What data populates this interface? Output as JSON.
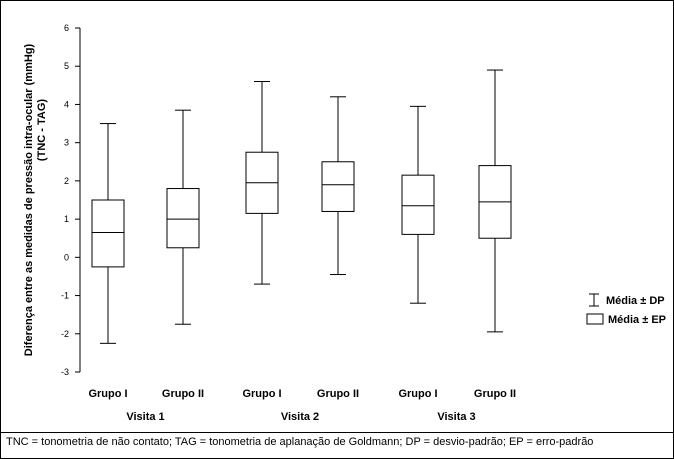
{
  "chart_data": {
    "type": "box",
    "ylabel": "Diferença entre as medidas de pressão intra-ocular (mmHg)",
    "ylabel_sub": "(TNC - TAG)",
    "ylim": [
      -3,
      6
    ],
    "yticks": [
      -3,
      -2,
      -1,
      0,
      1,
      2,
      3,
      4,
      5,
      6
    ],
    "grid": false,
    "legend_position": "right",
    "visits": [
      "Visita 1",
      "Visita 2",
      "Visita 3"
    ],
    "groups": [
      "Grupo I",
      "Grupo II",
      "Grupo I",
      "Grupo II",
      "Grupo I",
      "Grupo II"
    ],
    "series": [
      {
        "group": "Grupo I",
        "visit": "Visita 1",
        "mean": 0.65,
        "ep_low": -0.25,
        "ep_high": 1.5,
        "dp_low": -2.25,
        "dp_high": 3.5
      },
      {
        "group": "Grupo II",
        "visit": "Visita 1",
        "mean": 1.0,
        "ep_low": 0.25,
        "ep_high": 1.8,
        "dp_low": -1.75,
        "dp_high": 3.85
      },
      {
        "group": "Grupo I",
        "visit": "Visita 2",
        "mean": 1.95,
        "ep_low": 1.15,
        "ep_high": 2.75,
        "dp_low": -0.7,
        "dp_high": 4.6
      },
      {
        "group": "Grupo II",
        "visit": "Visita 2",
        "mean": 1.9,
        "ep_low": 1.2,
        "ep_high": 2.5,
        "dp_low": -0.45,
        "dp_high": 4.2
      },
      {
        "group": "Grupo I",
        "visit": "Visita 3",
        "mean": 1.35,
        "ep_low": 0.6,
        "ep_high": 2.15,
        "dp_low": -1.2,
        "dp_high": 3.95
      },
      {
        "group": "Grupo II",
        "visit": "Visita 3",
        "mean": 1.45,
        "ep_low": 0.5,
        "ep_high": 2.4,
        "dp_low": -1.95,
        "dp_high": 4.9
      }
    ],
    "legend": {
      "whisker_label": "Média ± DP",
      "box_label": "Média ± EP"
    }
  },
  "footnote": "TNC = tonometria de não contato; TAG = tonometria de aplanação de Goldmann; DP = desvio-padrão; EP = erro-padrão"
}
